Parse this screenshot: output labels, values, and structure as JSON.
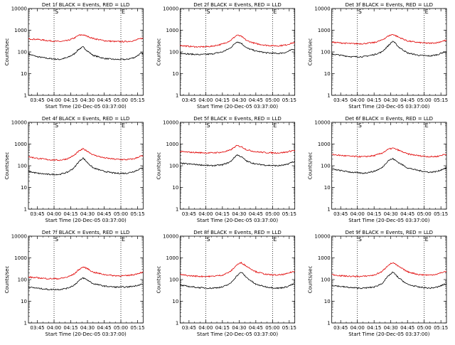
{
  "page": {
    "columns": 3,
    "rows": 3
  },
  "style": {
    "events_color": "#000000",
    "lld_color": "#e00000",
    "axis_color": "#000000",
    "marker_line_style": "dotted"
  },
  "common": {
    "xlabel": "Start Time (20-Dec-05 03:37:00)",
    "ylabel": "Counts/sec",
    "x_tick_labels": [
      "03:45",
      "04:00",
      "04:15",
      "04:30",
      "04:45",
      "05:00",
      "05:15"
    ],
    "y_tick_labels": [
      "1",
      "10",
      "100",
      "1000",
      "10000"
    ],
    "marker_letters": [
      "S",
      "E"
    ]
  },
  "chart_data": [
    {
      "type": "line",
      "title": "Det 1f BLACK = Events, RED = LLD",
      "xlim": [
        "03:37",
        "05:20"
      ],
      "ylim": [
        1,
        10000
      ],
      "yscale": "log",
      "markers": {
        "S": "04:00",
        "E": "05:00"
      },
      "series": [
        {
          "key": "events",
          "color": "#000000",
          "x": [
            "03:37",
            "03:45",
            "03:55",
            "04:05",
            "04:12",
            "04:18",
            "04:22",
            "04:26",
            "04:30",
            "04:35",
            "04:45",
            "04:55",
            "05:05",
            "05:12",
            "05:18"
          ],
          "y": [
            80,
            60,
            50,
            45,
            55,
            80,
            130,
            170,
            110,
            70,
            50,
            45,
            45,
            55,
            85
          ]
        },
        {
          "key": "lld",
          "color": "#e00000",
          "x": [
            "03:37",
            "03:45",
            "03:55",
            "04:05",
            "04:12",
            "04:18",
            "04:22",
            "04:26",
            "04:30",
            "04:35",
            "04:45",
            "04:55",
            "05:05",
            "05:12",
            "05:18"
          ],
          "y": [
            400,
            380,
            330,
            300,
            330,
            430,
            580,
            620,
            520,
            420,
            330,
            300,
            300,
            330,
            420
          ]
        }
      ]
    },
    {
      "type": "line",
      "title": "Det 2f BLACK = Events, RED = LLD",
      "xlim": [
        "03:37",
        "05:20"
      ],
      "ylim": [
        1,
        10000
      ],
      "yscale": "log",
      "markers": {
        "S": "04:00",
        "E": "05:00"
      },
      "series": [
        {
          "key": "events",
          "color": "#000000",
          "x": [
            "03:37",
            "03:45",
            "03:55",
            "04:05",
            "04:15",
            "04:22",
            "04:28",
            "04:32",
            "04:37",
            "04:45",
            "04:55",
            "05:05",
            "05:12",
            "05:18"
          ],
          "y": [
            90,
            80,
            75,
            80,
            100,
            150,
            300,
            250,
            150,
            110,
            90,
            85,
            95,
            130
          ]
        },
        {
          "key": "lld",
          "color": "#e00000",
          "x": [
            "03:37",
            "03:45",
            "03:55",
            "04:05",
            "04:15",
            "04:22",
            "04:28",
            "04:32",
            "04:37",
            "04:45",
            "04:55",
            "05:05",
            "05:12",
            "05:18"
          ],
          "y": [
            200,
            180,
            170,
            180,
            230,
            330,
            600,
            520,
            330,
            240,
            200,
            190,
            210,
            260
          ]
        }
      ]
    },
    {
      "type": "line",
      "title": "Det 3f BLACK = Events, RED = LLD",
      "xlim": [
        "03:37",
        "05:20"
      ],
      "ylim": [
        1,
        10000
      ],
      "yscale": "log",
      "markers": {
        "S": "04:00",
        "E": "05:00"
      },
      "series": [
        {
          "key": "events",
          "color": "#000000",
          "x": [
            "03:37",
            "03:45",
            "03:55",
            "04:05",
            "04:15",
            "04:22",
            "04:28",
            "04:32",
            "04:37",
            "04:45",
            "04:55",
            "05:05",
            "05:12",
            "05:18"
          ],
          "y": [
            80,
            70,
            60,
            60,
            75,
            100,
            200,
            320,
            170,
            90,
            70,
            65,
            75,
            100
          ]
        },
        {
          "key": "lld",
          "color": "#e00000",
          "x": [
            "03:37",
            "03:45",
            "03:55",
            "04:05",
            "04:15",
            "04:22",
            "04:28",
            "04:32",
            "04:37",
            "04:45",
            "04:55",
            "05:05",
            "05:12",
            "05:18"
          ],
          "y": [
            280,
            260,
            240,
            240,
            270,
            350,
            550,
            650,
            480,
            320,
            270,
            250,
            270,
            330
          ]
        }
      ]
    },
    {
      "type": "line",
      "title": "Det 4f BLACK = Events, RED = LLD",
      "xlim": [
        "03:37",
        "05:20"
      ],
      "ylim": [
        1,
        10000
      ],
      "yscale": "log",
      "markers": {
        "S": "04:00",
        "E": "05:00"
      },
      "series": [
        {
          "key": "events",
          "color": "#000000",
          "x": [
            "03:37",
            "03:45",
            "03:55",
            "04:05",
            "04:12",
            "04:18",
            "04:22",
            "04:26",
            "04:30",
            "04:35",
            "04:45",
            "04:55",
            "05:05",
            "05:12",
            "05:18"
          ],
          "y": [
            55,
            45,
            40,
            40,
            50,
            80,
            150,
            230,
            140,
            80,
            55,
            45,
            45,
            55,
            75
          ]
        },
        {
          "key": "lld",
          "color": "#e00000",
          "x": [
            "03:37",
            "03:45",
            "03:55",
            "04:05",
            "04:12",
            "04:18",
            "04:22",
            "04:26",
            "04:30",
            "04:35",
            "04:45",
            "04:55",
            "05:05",
            "05:12",
            "05:18"
          ],
          "y": [
            260,
            220,
            190,
            180,
            210,
            300,
            460,
            600,
            470,
            320,
            230,
            200,
            190,
            210,
            280
          ]
        }
      ]
    },
    {
      "type": "line",
      "title": "Det 5f BLACK = Events, RED = LLD",
      "xlim": [
        "03:37",
        "05:20"
      ],
      "ylim": [
        1,
        10000
      ],
      "yscale": "log",
      "markers": {
        "S": "04:00",
        "E": "05:00"
      },
      "series": [
        {
          "key": "events",
          "color": "#000000",
          "x": [
            "03:37",
            "03:45",
            "03:55",
            "04:05",
            "04:15",
            "04:22",
            "04:28",
            "04:32",
            "04:37",
            "04:45",
            "04:55",
            "05:05",
            "05:12",
            "05:18"
          ],
          "y": [
            130,
            120,
            110,
            100,
            110,
            150,
            320,
            260,
            160,
            120,
            105,
            100,
            110,
            150
          ]
        },
        {
          "key": "lld",
          "color": "#e00000",
          "x": [
            "03:37",
            "03:45",
            "03:55",
            "04:05",
            "04:15",
            "04:22",
            "04:28",
            "04:32",
            "04:37",
            "04:45",
            "04:55",
            "05:05",
            "05:12",
            "05:18"
          ],
          "y": [
            450,
            420,
            400,
            390,
            420,
            520,
            850,
            760,
            540,
            440,
            400,
            390,
            420,
            500
          ]
        }
      ]
    },
    {
      "type": "line",
      "title": "Det 6f BLACK = Events, RED = LLD",
      "xlim": [
        "03:37",
        "05:20"
      ],
      "ylim": [
        1,
        10000
      ],
      "yscale": "log",
      "markers": {
        "S": "04:00",
        "E": "05:00"
      },
      "series": [
        {
          "key": "events",
          "color": "#000000",
          "x": [
            "03:37",
            "03:45",
            "03:55",
            "04:05",
            "04:15",
            "04:22",
            "04:28",
            "04:32",
            "04:37",
            "04:45",
            "04:55",
            "05:05",
            "05:12",
            "05:18"
          ],
          "y": [
            70,
            60,
            50,
            45,
            55,
            80,
            180,
            210,
            140,
            80,
            60,
            50,
            55,
            75
          ]
        },
        {
          "key": "lld",
          "color": "#e00000",
          "x": [
            "03:37",
            "03:45",
            "03:55",
            "04:05",
            "04:15",
            "04:22",
            "04:28",
            "04:32",
            "04:37",
            "04:45",
            "04:55",
            "05:05",
            "05:12",
            "05:18"
          ],
          "y": [
            330,
            300,
            270,
            260,
            290,
            380,
            580,
            650,
            520,
            350,
            290,
            260,
            270,
            330
          ]
        }
      ]
    },
    {
      "type": "line",
      "title": "Det 7f BLACK = Events, RED = LLD",
      "xlim": [
        "03:37",
        "05:20"
      ],
      "ylim": [
        1,
        10000
      ],
      "yscale": "log",
      "markers": {
        "S": "04:00",
        "E": "05:00"
      },
      "series": [
        {
          "key": "events",
          "color": "#000000",
          "x": [
            "03:37",
            "03:45",
            "03:55",
            "04:05",
            "04:12",
            "04:18",
            "04:22",
            "04:26",
            "04:30",
            "04:35",
            "04:45",
            "04:55",
            "05:05",
            "05:12",
            "05:18"
          ],
          "y": [
            45,
            40,
            35,
            35,
            40,
            55,
            85,
            120,
            95,
            65,
            50,
            45,
            45,
            50,
            60
          ]
        },
        {
          "key": "lld",
          "color": "#e00000",
          "x": [
            "03:37",
            "03:45",
            "03:55",
            "04:05",
            "04:12",
            "04:18",
            "04:22",
            "04:26",
            "04:30",
            "04:35",
            "04:45",
            "04:55",
            "05:05",
            "05:12",
            "05:18"
          ],
          "y": [
            130,
            120,
            110,
            110,
            130,
            180,
            280,
            380,
            320,
            220,
            170,
            150,
            150,
            170,
            210
          ]
        }
      ]
    },
    {
      "type": "line",
      "title": "Det 8f BLACK = Events, RED = LLD",
      "xlim": [
        "03:37",
        "05:20"
      ],
      "ylim": [
        1,
        10000
      ],
      "yscale": "log",
      "markers": {
        "S": "04:00",
        "E": "05:00"
      },
      "series": [
        {
          "key": "events",
          "color": "#000000",
          "x": [
            "03:37",
            "03:45",
            "03:55",
            "04:05",
            "04:15",
            "04:22",
            "04:28",
            "04:32",
            "04:37",
            "04:45",
            "04:55",
            "05:05",
            "05:12",
            "05:18"
          ],
          "y": [
            55,
            48,
            42,
            40,
            45,
            65,
            150,
            220,
            120,
            60,
            45,
            40,
            45,
            60
          ]
        },
        {
          "key": "lld",
          "color": "#e00000",
          "x": [
            "03:37",
            "03:45",
            "03:55",
            "04:05",
            "04:15",
            "04:22",
            "04:28",
            "04:32",
            "04:37",
            "04:45",
            "04:55",
            "05:05",
            "05:12",
            "05:18"
          ],
          "y": [
            170,
            150,
            140,
            140,
            160,
            230,
            480,
            600,
            400,
            230,
            170,
            160,
            180,
            230
          ]
        }
      ]
    },
    {
      "type": "line",
      "title": "Det 9f BLACK = Events, RED = LLD",
      "xlim": [
        "03:37",
        "05:20"
      ],
      "ylim": [
        1,
        10000
      ],
      "yscale": "log",
      "markers": {
        "S": "04:00",
        "E": "05:00"
      },
      "series": [
        {
          "key": "events",
          "color": "#000000",
          "x": [
            "03:37",
            "03:45",
            "03:55",
            "04:05",
            "04:15",
            "04:22",
            "04:28",
            "04:32",
            "04:37",
            "04:45",
            "04:55",
            "05:05",
            "05:12",
            "05:18"
          ],
          "y": [
            55,
            48,
            42,
            40,
            45,
            65,
            150,
            220,
            120,
            60,
            45,
            40,
            45,
            60
          ]
        },
        {
          "key": "lld",
          "color": "#e00000",
          "x": [
            "03:37",
            "03:45",
            "03:55",
            "04:05",
            "04:15",
            "04:22",
            "04:28",
            "04:32",
            "04:37",
            "04:45",
            "04:55",
            "05:05",
            "05:12",
            "05:18"
          ],
          "y": [
            170,
            150,
            140,
            140,
            160,
            230,
            480,
            600,
            400,
            230,
            170,
            160,
            180,
            230
          ]
        }
      ]
    }
  ]
}
